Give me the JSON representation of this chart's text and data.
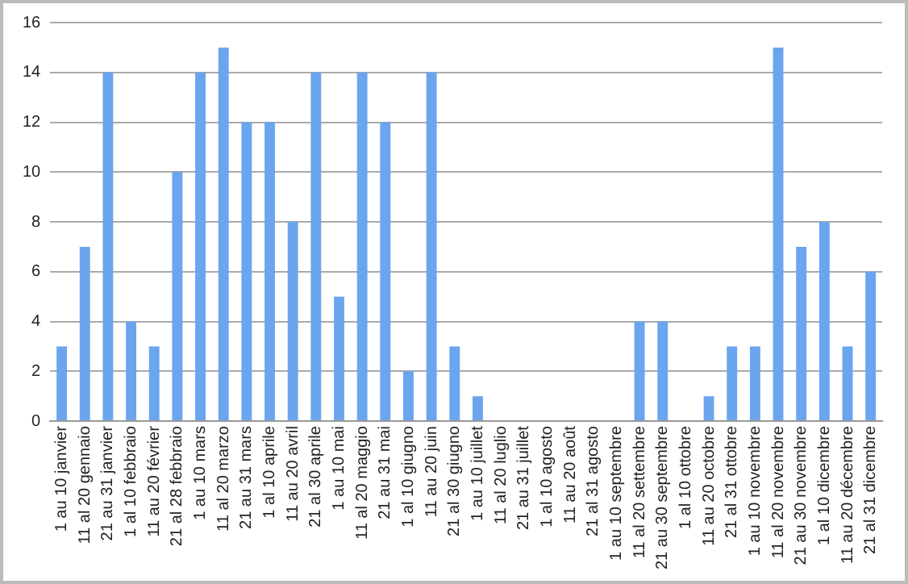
{
  "chart_data": {
    "type": "bar",
    "categories": [
      "1 au 10 janvier",
      "11 al 20 gennaio",
      "21 au 31 janvier",
      "1 al 10 febbraio",
      "11 au 20 février",
      "21 al 28 febbraio",
      "1 au 10 mars",
      "11 al 20 marzo",
      "21 au 31 mars",
      "1 al 10 aprile",
      "11 au 20 avril",
      "21 al 30 aprile",
      "1 au 10 mai",
      "11 al 20 maggio",
      "21 au 31 mai",
      "1 al 10 giugno",
      "11 au 20 juin",
      "21 al 30 giugno",
      "1 au 10 juillet",
      "11 al 20 luglio",
      "21 au 31 juillet",
      "1 al 10 agosto",
      "11 au 20 août",
      "21 al 31 agosto",
      "1 au 10 septembre",
      "11 al 20 settembre",
      "21 au 30 septembre",
      "1 al 10 ottobre",
      "11 au 20 octobre",
      "21 al 31 ottobre",
      "1 au 10 novembre",
      "11 al 20 novembre",
      "21 au 30 novembre",
      "1 al 10 dicembre",
      "11 au 20 décembre",
      "21 al 31 dicembre"
    ],
    "values": [
      3,
      7,
      14,
      4,
      3,
      10,
      14,
      15,
      12,
      12,
      8,
      14,
      5,
      14,
      12,
      2,
      14,
      3,
      1,
      0,
      0,
      0,
      0,
      0,
      0,
      4,
      4,
      0,
      1,
      3,
      3,
      15,
      7,
      8,
      3,
      6
    ],
    "color": "#6aa5ee",
    "ylim": [
      0,
      16
    ],
    "yticks": [
      0,
      2,
      4,
      6,
      8,
      10,
      12,
      14,
      16
    ],
    "grid": "y",
    "legend": false
  }
}
